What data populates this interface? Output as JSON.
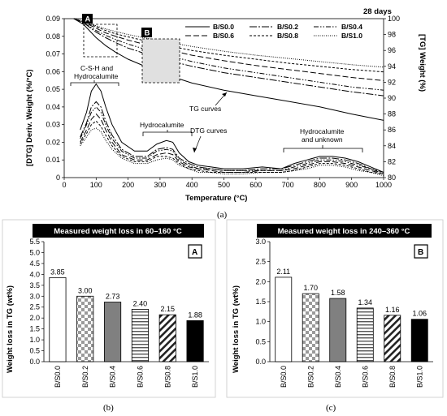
{
  "figure": {
    "caption_a": "(a)",
    "caption_b": "(b)",
    "caption_c": "(c)"
  },
  "chart_data": [
    {
      "type": "line",
      "panel": "a",
      "age_label": "28 days",
      "xlabel": "Temperature (°C)",
      "ylabel_left": "[DTG] Deriv. Weight (%/°C)",
      "ylabel_right": "[TG] Weight (%)",
      "xlim": [
        0,
        1000
      ],
      "ylim_left": [
        0,
        0.09
      ],
      "ylim_right": [
        80,
        100
      ],
      "x_ticks": [
        0,
        100,
        200,
        300,
        400,
        500,
        600,
        700,
        800,
        900,
        1000
      ],
      "y_left_ticks": [
        "0",
        "0.01",
        "0.02",
        "0.03",
        "0.04",
        "0.05",
        "0.06",
        "0.07",
        "0.08",
        "0.09"
      ],
      "y_right_ticks": [
        "80",
        "82",
        "84",
        "86",
        "88",
        "90",
        "92",
        "94",
        "96",
        "98",
        "100"
      ],
      "legend": [
        {
          "name": "B/S0.0",
          "color": "#000000",
          "dash": ""
        },
        {
          "name": "B/S0.2",
          "color": "#000000",
          "dash": "9,2,2,2"
        },
        {
          "name": "B/S0.4",
          "color": "#000000",
          "dash": "6,2,1.5,2,1.5,2"
        },
        {
          "name": "B/S0.6",
          "color": "#000000",
          "dash": "7,3"
        },
        {
          "name": "B/S0.8",
          "color": "#000000",
          "dash": "3,2"
        },
        {
          "name": "B/S1.0",
          "color": "#000000",
          "dash": "1,1.5"
        }
      ],
      "tg_series": [
        {
          "name": "B/S0.0",
          "x": [
            30,
            60,
            100,
            130,
            160,
            200,
            300,
            400,
            500,
            600,
            700,
            800,
            900,
            1000
          ],
          "y": [
            100,
            99.3,
            97.6,
            96.6,
            95.8,
            94.9,
            93.2,
            91.9,
            91.0,
            90.3,
            89.6,
            88.9,
            88.0,
            87.2
          ]
        },
        {
          "name": "B/S0.2",
          "x": [
            30,
            60,
            100,
            130,
            160,
            200,
            300,
            400,
            500,
            600,
            700,
            800,
            900,
            1000
          ],
          "y": [
            100,
            99.5,
            98.3,
            97.6,
            97.0,
            96.3,
            95.0,
            94.0,
            93.2,
            92.6,
            92.0,
            91.4,
            90.8,
            90.3
          ]
        },
        {
          "name": "B/S0.4",
          "x": [
            30,
            60,
            100,
            130,
            160,
            200,
            300,
            400,
            500,
            600,
            700,
            800,
            900,
            1000
          ],
          "y": [
            100,
            99.5,
            98.5,
            97.9,
            97.4,
            96.8,
            95.6,
            94.6,
            93.8,
            93.2,
            92.6,
            92.0,
            91.4,
            91.0
          ]
        },
        {
          "name": "B/S0.6",
          "x": [
            30,
            60,
            100,
            130,
            160,
            200,
            300,
            400,
            500,
            600,
            700,
            800,
            900,
            1000
          ],
          "y": [
            100,
            99.6,
            98.8,
            98.2,
            97.8,
            97.3,
            96.3,
            95.4,
            94.7,
            94.1,
            93.6,
            93.1,
            92.6,
            92.2
          ]
        },
        {
          "name": "B/S0.8",
          "x": [
            30,
            60,
            100,
            130,
            160,
            200,
            300,
            400,
            500,
            600,
            700,
            800,
            900,
            1000
          ],
          "y": [
            100,
            99.6,
            99.0,
            98.5,
            98.1,
            97.7,
            96.8,
            96.0,
            95.4,
            94.9,
            94.4,
            94.0,
            93.6,
            93.3
          ]
        },
        {
          "name": "B/S1.0",
          "x": [
            30,
            60,
            100,
            130,
            160,
            200,
            300,
            400,
            500,
            600,
            700,
            800,
            900,
            1000
          ],
          "y": [
            100,
            99.7,
            99.1,
            98.7,
            98.4,
            98.0,
            97.2,
            96.5,
            95.9,
            95.4,
            95.0,
            94.6,
            94.2,
            93.9
          ]
        }
      ],
      "dtg_series": [
        {
          "name": "B/S0.0",
          "x": [
            50,
            70,
            85,
            100,
            115,
            130,
            150,
            180,
            220,
            260,
            290,
            320,
            340,
            360,
            390,
            420,
            460,
            500,
            560,
            620,
            680,
            720,
            760,
            800,
            840,
            880,
            920,
            960,
            1000
          ],
          "y": [
            0.027,
            0.037,
            0.049,
            0.053,
            0.049,
            0.04,
            0.03,
            0.02,
            0.015,
            0.015,
            0.019,
            0.021,
            0.02,
            0.014,
            0.009,
            0.007,
            0.006,
            0.005,
            0.005,
            0.006,
            0.005,
            0.008,
            0.01,
            0.012,
            0.012,
            0.011,
            0.009,
            0.006,
            0.003
          ]
        },
        {
          "name": "B/S0.2",
          "x": [
            50,
            70,
            85,
            100,
            115,
            130,
            150,
            180,
            220,
            260,
            290,
            320,
            340,
            360,
            390,
            420,
            460,
            500,
            560,
            620,
            680,
            720,
            760,
            800,
            840,
            880,
            920,
            960,
            1000
          ],
          "y": [
            0.023,
            0.031,
            0.04,
            0.043,
            0.04,
            0.032,
            0.024,
            0.016,
            0.012,
            0.012,
            0.016,
            0.017,
            0.016,
            0.011,
            0.008,
            0.006,
            0.005,
            0.004,
            0.004,
            0.005,
            0.005,
            0.007,
            0.009,
            0.011,
            0.011,
            0.01,
            0.008,
            0.005,
            0.003
          ]
        },
        {
          "name": "B/S0.4",
          "x": [
            50,
            70,
            85,
            100,
            115,
            130,
            150,
            180,
            220,
            260,
            290,
            320,
            340,
            360,
            390,
            420,
            460,
            500,
            560,
            620,
            680,
            720,
            760,
            800,
            840,
            880,
            920,
            960,
            1000
          ],
          "y": [
            0.022,
            0.03,
            0.037,
            0.04,
            0.037,
            0.03,
            0.022,
            0.015,
            0.011,
            0.011,
            0.015,
            0.016,
            0.015,
            0.01,
            0.007,
            0.005,
            0.005,
            0.004,
            0.004,
            0.004,
            0.004,
            0.006,
            0.008,
            0.01,
            0.01,
            0.009,
            0.007,
            0.005,
            0.002
          ]
        },
        {
          "name": "B/S0.6",
          "x": [
            50,
            70,
            85,
            100,
            115,
            130,
            150,
            180,
            220,
            260,
            290,
            320,
            340,
            360,
            390,
            420,
            460,
            500,
            560,
            620,
            680,
            720,
            760,
            800,
            840,
            880,
            920,
            960,
            1000
          ],
          "y": [
            0.02,
            0.027,
            0.033,
            0.036,
            0.033,
            0.027,
            0.02,
            0.013,
            0.01,
            0.01,
            0.013,
            0.014,
            0.013,
            0.009,
            0.006,
            0.005,
            0.004,
            0.003,
            0.003,
            0.004,
            0.004,
            0.005,
            0.007,
            0.009,
            0.009,
            0.008,
            0.006,
            0.004,
            0.002
          ]
        },
        {
          "name": "B/S0.8",
          "x": [
            50,
            70,
            85,
            100,
            115,
            130,
            150,
            180,
            220,
            260,
            290,
            320,
            340,
            360,
            390,
            420,
            460,
            500,
            560,
            620,
            680,
            720,
            760,
            800,
            840,
            880,
            920,
            960,
            1000
          ],
          "y": [
            0.019,
            0.025,
            0.03,
            0.032,
            0.029,
            0.024,
            0.018,
            0.012,
            0.009,
            0.009,
            0.012,
            0.012,
            0.011,
            0.008,
            0.005,
            0.004,
            0.003,
            0.003,
            0.003,
            0.003,
            0.003,
            0.004,
            0.006,
            0.008,
            0.008,
            0.007,
            0.005,
            0.003,
            0.002
          ]
        },
        {
          "name": "B/S1.0",
          "x": [
            50,
            70,
            85,
            100,
            115,
            130,
            150,
            180,
            220,
            260,
            290,
            320,
            340,
            360,
            390,
            420,
            460,
            500,
            560,
            620,
            680,
            720,
            760,
            800,
            840,
            880,
            920,
            960,
            1000
          ],
          "y": [
            0.018,
            0.023,
            0.027,
            0.028,
            0.026,
            0.021,
            0.016,
            0.011,
            0.008,
            0.008,
            0.01,
            0.011,
            0.01,
            0.007,
            0.005,
            0.003,
            0.003,
            0.002,
            0.002,
            0.003,
            0.003,
            0.004,
            0.005,
            0.007,
            0.007,
            0.006,
            0.004,
            0.003,
            0.001
          ]
        }
      ],
      "annotations": {
        "box_a": "A",
        "box_b": "B",
        "csh_line1": "C-S-H and",
        "csh_line2": "Hydrocalumite",
        "hydrocalumite": "Hydrocalumite",
        "hydro_unknown_line1": "Hydrocalumite",
        "hydro_unknown_line2": "and unknown",
        "tg_curves": "TG curves",
        "dtg_curves": "DTG curves"
      }
    },
    {
      "type": "bar",
      "panel": "b",
      "title": "Measured weight loss in 60–160 °C",
      "badge": "A",
      "ylabel": "Weight loss in TG (wt%)",
      "ylim": [
        0,
        5.5
      ],
      "yticks": [
        "0.0",
        "0.5",
        "1.0",
        "1.5",
        "2.0",
        "2.5",
        "3.0",
        "3.5",
        "4.0",
        "4.5",
        "5.0",
        "5.5"
      ],
      "categories": [
        "B/S0.0",
        "B/S0.2",
        "B/S0.4",
        "B/S0.6",
        "B/S0.8",
        "B/S1.0"
      ],
      "values": [
        3.85,
        3.0,
        2.73,
        2.4,
        2.15,
        1.88
      ],
      "value_labels": [
        "3.85",
        "3.00",
        "2.73",
        "2.40",
        "2.15",
        "1.88"
      ]
    },
    {
      "type": "bar",
      "panel": "c",
      "title": "Measured weight loss in 240–360 °C",
      "badge": "B",
      "ylabel": "Weight loss in TG (wt%)",
      "ylim": [
        0,
        3.0
      ],
      "yticks": [
        "0.0",
        "0.5",
        "1.0",
        "1.5",
        "2.0",
        "2.5",
        "3.0"
      ],
      "categories": [
        "B/S0.0",
        "B/S0.2",
        "B/S0.4",
        "B/S0.6",
        "B/S0.8",
        "B/S1.0"
      ],
      "values": [
        2.11,
        1.7,
        1.58,
        1.34,
        1.16,
        1.06
      ],
      "value_labels": [
        "2.11",
        "1.70",
        "1.58",
        "1.34",
        "1.16",
        "1.06"
      ]
    }
  ]
}
